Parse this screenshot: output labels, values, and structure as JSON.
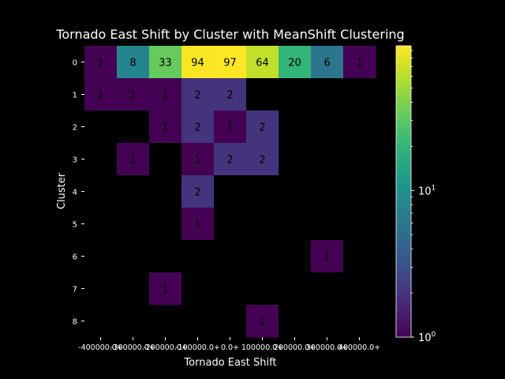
{
  "chart_data": {
    "type": "heatmap",
    "title": "Tornado East Shift by Cluster with MeanShift Clustering",
    "xlabel": "Tornado East Shift",
    "ylabel": "Cluster",
    "x_categories": [
      "-400000.0+",
      "-300000.0+",
      "-200000.0+",
      "-100000.0+",
      "0.0+",
      "100000.0+",
      "200000.0+",
      "300000.0+",
      "400000.0+"
    ],
    "y_categories": [
      "0",
      "1",
      "2",
      "3",
      "4",
      "5",
      "6",
      "7",
      "8"
    ],
    "values": [
      [
        1,
        8,
        33,
        94,
        97,
        64,
        20,
        6,
        1
      ],
      [
        1,
        1,
        1,
        2,
        2,
        0,
        0,
        0,
        0
      ],
      [
        0,
        0,
        1,
        2,
        1,
        2,
        0,
        0,
        0
      ],
      [
        0,
        1,
        0,
        1,
        2,
        2,
        0,
        0,
        0
      ],
      [
        0,
        0,
        0,
        2,
        0,
        0,
        0,
        0,
        0
      ],
      [
        0,
        0,
        0,
        1,
        0,
        0,
        0,
        0,
        0
      ],
      [
        0,
        0,
        0,
        0,
        0,
        0,
        0,
        1,
        0
      ],
      [
        0,
        0,
        1,
        0,
        0,
        0,
        0,
        0,
        0
      ],
      [
        0,
        0,
        0,
        0,
        0,
        1,
        0,
        0,
        0
      ]
    ],
    "colormap": "viridis",
    "color_scale": "log",
    "colorbar_range": [
      1,
      97
    ],
    "colorbar_ticks": [
      {
        "value": 1,
        "base": "10",
        "exp": "0"
      },
      {
        "value": 10,
        "base": "10",
        "exp": "1"
      }
    ],
    "empty_color": "#000000",
    "background": "#000000"
  }
}
